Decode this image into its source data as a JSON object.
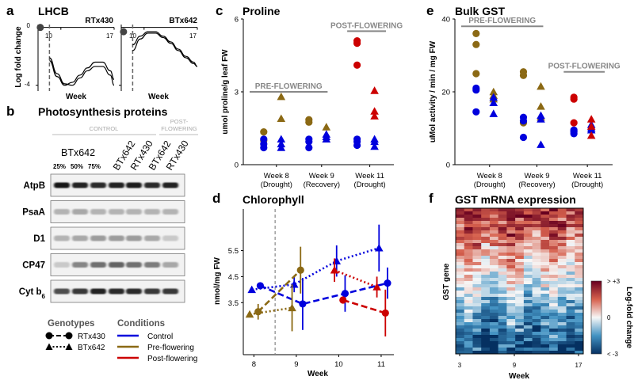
{
  "panels": {
    "a": {
      "letter": "a",
      "title": "LHCB"
    },
    "b": {
      "letter": "b",
      "title": "Photosynthesis proteins"
    },
    "c": {
      "letter": "c",
      "title": "Proline"
    },
    "d": {
      "letter": "d",
      "title": "Chlorophyll"
    },
    "e": {
      "letter": "e",
      "title": "Bulk GST"
    },
    "f": {
      "letter": "f",
      "title": "GST mRNA expression"
    }
  },
  "colors": {
    "control": "#0000dd",
    "pre_flowering": "#8b6914",
    "post_flowering": "#cc0000",
    "annotation": "#888888"
  },
  "chart_data": [
    {
      "id": "a",
      "type": "line",
      "ylabel": "Log fold change",
      "xlabel": "Week",
      "yticks": [
        "0",
        "-4"
      ],
      "xticks": [
        "10",
        "17"
      ],
      "ylim": [
        -4.4,
        0.2
      ],
      "xlim": [
        7,
        17
      ],
      "subpanels": [
        {
          "name": "RTx430",
          "marker_week": 7.3,
          "marker_value": 0,
          "dashed_week": 8.5,
          "series": [
            {
              "values": [
                [
                  8.5,
                  -2.1
                ],
                [
                  9.5,
                  -3.2
                ],
                [
                  10.5,
                  -3.9
                ],
                [
                  11.5,
                  -4.0
                ],
                [
                  12.5,
                  -3.5
                ],
                [
                  13.5,
                  -3.0
                ],
                [
                  14.5,
                  -2.7
                ],
                [
                  15.5,
                  -2.7
                ],
                [
                  16.5,
                  -3.3
                ],
                [
                  17,
                  -4.0
                ]
              ]
            },
            {
              "values": [
                [
                  8.5,
                  -2.3
                ],
                [
                  9.5,
                  -3.4
                ],
                [
                  10.5,
                  -4.0
                ],
                [
                  11.5,
                  -3.8
                ],
                [
                  12.5,
                  -3.3
                ],
                [
                  13.5,
                  -2.8
                ],
                [
                  14.5,
                  -2.4
                ],
                [
                  15.5,
                  -2.4
                ],
                [
                  16.5,
                  -3.0
                ],
                [
                  17,
                  -3.6
                ]
              ]
            }
          ]
        },
        {
          "name": "BTx642",
          "marker_week": 7.3,
          "marker_value": -0.3,
          "dashed_week": 8.5,
          "series": [
            {
              "values": [
                [
                  8.5,
                  -1.2
                ],
                [
                  9.5,
                  -0.6
                ],
                [
                  10.5,
                  -0.3
                ],
                [
                  11.5,
                  -0.3
                ],
                [
                  12.5,
                  -0.6
                ],
                [
                  13.5,
                  -1.0
                ],
                [
                  14.5,
                  -1.5
                ],
                [
                  15.5,
                  -2.0
                ],
                [
                  16.5,
                  -2.4
                ],
                [
                  17,
                  -2.7
                ]
              ]
            },
            {
              "values": [
                [
                  8.5,
                  -1.6
                ],
                [
                  9.5,
                  -0.8
                ],
                [
                  10.5,
                  -0.4
                ],
                [
                  11.5,
                  -0.4
                ],
                [
                  12.5,
                  -0.7
                ],
                [
                  13.5,
                  -1.1
                ],
                [
                  14.5,
                  -1.6
                ],
                [
                  15.5,
                  -2.1
                ],
                [
                  16.5,
                  -2.5
                ],
                [
                  17,
                  -2.7
                ]
              ]
            }
          ]
        }
      ]
    },
    {
      "id": "c",
      "type": "scatter",
      "ylabel": "umol proline/g leaf FW",
      "yticks": [
        "0",
        "3",
        "6"
      ],
      "ylim": [
        0,
        6
      ],
      "categories": [
        "Week 8\n(Drought)",
        "Week 9\n(Recovery)",
        "Week 11\n(Drought)"
      ],
      "annotations": [
        {
          "text": "PRE-FLOWERING",
          "level": 3.0
        },
        {
          "text": "POST-FLOWERING",
          "level": 5.5
        }
      ],
      "series": [
        {
          "genotype": "RTx430",
          "condition": "Pre-flowering",
          "points": [
            [
              0,
              1.0
            ],
            [
              0,
              1.35
            ],
            [
              1,
              1.75
            ],
            [
              1,
              1.85
            ]
          ]
        },
        {
          "genotype": "BTx642",
          "condition": "Pre-flowering",
          "points": [
            [
              0,
              1.9
            ],
            [
              0,
              2.8
            ],
            [
              1,
              1.05
            ],
            [
              1,
              1.55
            ]
          ]
        },
        {
          "genotype": "RTx430",
          "condition": "Control",
          "points": [
            [
              0,
              0.7
            ],
            [
              0,
              0.85
            ],
            [
              0,
              1.05
            ],
            [
              1,
              0.7
            ],
            [
              1,
              0.95
            ],
            [
              1,
              1.05
            ],
            [
              2,
              0.8
            ],
            [
              2,
              0.95
            ],
            [
              2,
              1.05
            ]
          ]
        },
        {
          "genotype": "BTx642",
          "condition": "Control",
          "points": [
            [
              0,
              0.7
            ],
            [
              0,
              0.85
            ],
            [
              0,
              1.05
            ],
            [
              1,
              1.05
            ],
            [
              1,
              1.15
            ],
            [
              1,
              1.25
            ],
            [
              2,
              0.75
            ],
            [
              2,
              0.95
            ],
            [
              2,
              1.05
            ]
          ]
        },
        {
          "genotype": "RTx430",
          "condition": "Post-flowering",
          "points": [
            [
              2,
              4.1
            ],
            [
              2,
              5.0
            ],
            [
              2,
              5.1
            ]
          ]
        },
        {
          "genotype": "BTx642",
          "condition": "Post-flowering",
          "points": [
            [
              2,
              2.0
            ],
            [
              2,
              2.2
            ],
            [
              2,
              3.05
            ]
          ]
        }
      ]
    },
    {
      "id": "d",
      "type": "line",
      "ylabel": "nmol/mg FW",
      "xlabel": "Week",
      "xticks": [
        "8",
        "9",
        "10",
        "11"
      ],
      "yticks": [
        "3.5",
        "4.5",
        "5.5"
      ],
      "xlim": [
        7.75,
        11.3
      ],
      "ylim": [
        1.5,
        7.1
      ],
      "vline": 8.5,
      "series": [
        {
          "genotype": "RTx430",
          "condition": "Control",
          "points": [
            [
              8.15,
              4.15,
              0
            ],
            [
              9.15,
              3.45,
              1.0
            ],
            [
              10.15,
              3.85,
              0.7
            ],
            [
              11.15,
              4.25,
              0.6
            ]
          ]
        },
        {
          "genotype": "BTx642",
          "condition": "Control",
          "points": [
            [
              7.95,
              4.0,
              0
            ],
            [
              8.95,
              4.2,
              0.3
            ],
            [
              9.95,
              5.1,
              0.6
            ],
            [
              10.95,
              5.6,
              0.9
            ]
          ]
        },
        {
          "genotype": "RTx430",
          "condition": "Pre-flowering",
          "points": [
            [
              8.1,
              3.15,
              0.3
            ],
            [
              9.1,
              4.75,
              0.9
            ]
          ]
        },
        {
          "genotype": "BTx642",
          "condition": "Pre-flowering",
          "points": [
            [
              7.9,
              3.05,
              0
            ],
            [
              8.9,
              3.3,
              0.9
            ]
          ]
        },
        {
          "genotype": "RTx430",
          "condition": "Post-flowering",
          "points": [
            [
              10.1,
              3.6,
              0
            ],
            [
              11.1,
              3.1,
              0.9
            ]
          ]
        },
        {
          "genotype": "BTx642",
          "condition": "Post-flowering",
          "points": [
            [
              9.9,
              4.75,
              0.45
            ],
            [
              10.9,
              4.1,
              0.4
            ]
          ]
        }
      ]
    },
    {
      "id": "e",
      "type": "scatter",
      "ylabel": "uMol activity / min / mg FW",
      "yticks": [
        "0",
        "20",
        "40"
      ],
      "ylim": [
        0,
        40
      ],
      "categories": [
        "Week 8\n(Drought)",
        "Week 9\n(Recovery)",
        "Week 11\n(Drought)"
      ],
      "annotations": [
        {
          "text": "PRE-FLOWERING",
          "level": 38
        },
        {
          "text": "POST-FLOWERING",
          "level": 25.5
        }
      ],
      "series": [
        {
          "genotype": "RTx430",
          "condition": "Pre-flowering",
          "points": [
            [
              0,
              25
            ],
            [
              0,
              33
            ],
            [
              0,
              36
            ],
            [
              1,
              11.5
            ],
            [
              1,
              24.5
            ],
            [
              1,
              25.5
            ]
          ]
        },
        {
          "genotype": "BTx642",
          "condition": "Pre-flowering",
          "points": [
            [
              0,
              18
            ],
            [
              0,
              19
            ],
            [
              0,
              20
            ],
            [
              1,
              13
            ],
            [
              1,
              16
            ],
            [
              1,
              21.5
            ]
          ]
        },
        {
          "genotype": "RTx430",
          "condition": "Control",
          "points": [
            [
              0,
              14.5
            ],
            [
              0,
              20.5
            ],
            [
              0,
              21
            ],
            [
              1,
              7.5
            ],
            [
              1,
              12
            ],
            [
              1,
              13
            ],
            [
              2,
              8.5
            ],
            [
              2,
              9
            ],
            [
              2,
              9.5
            ]
          ]
        },
        {
          "genotype": "BTx642",
          "condition": "Control",
          "points": [
            [
              0,
              14
            ],
            [
              0,
              17
            ],
            [
              0,
              18.5
            ],
            [
              1,
              5.5
            ],
            [
              1,
              12.5
            ],
            [
              1,
              13.5
            ],
            [
              2,
              9.5
            ],
            [
              2,
              10
            ],
            [
              2,
              11
            ]
          ]
        },
        {
          "genotype": "RTx430",
          "condition": "Post-flowering",
          "points": [
            [
              2,
              11.5
            ],
            [
              2,
              18
            ],
            [
              2,
              18.5
            ]
          ]
        },
        {
          "genotype": "BTx642",
          "condition": "Post-flowering",
          "points": [
            [
              2,
              8
            ],
            [
              2,
              10.5
            ],
            [
              2,
              12.5
            ]
          ]
        }
      ]
    },
    {
      "id": "f",
      "type": "heatmap",
      "xlabel": "Week",
      "ylabel": "GST gene",
      "xticks": [
        "3",
        "9",
        "17"
      ],
      "colorbar": {
        "label": "Log-fold change",
        "max_label": "> +3",
        "mid_label": "0",
        "min_label": "< -3"
      }
    }
  ],
  "blot": {
    "header_groups": [
      "CONTROL",
      "POST-\nFLOWERING"
    ],
    "genotype_label": "BTx642",
    "percent_labels": [
      "25%",
      "50%",
      "75%"
    ],
    "lane_labels": [
      "BTx642",
      "RTx430",
      "BTx642",
      "RTx430"
    ],
    "rows": [
      {
        "protein": "AtpB",
        "intensities": [
          0.95,
          0.9,
          0.85,
          0.9,
          0.92,
          0.85,
          0.9
        ]
      },
      {
        "protein": "PsaA",
        "intensities": [
          0.25,
          0.3,
          0.25,
          0.25,
          0.25,
          0.25,
          0.25
        ]
      },
      {
        "protein": "D1",
        "intensities": [
          0.25,
          0.3,
          0.35,
          0.35,
          0.35,
          0.3,
          0.15
        ]
      },
      {
        "protein": "CP47",
        "intensities": [
          0.15,
          0.45,
          0.55,
          0.6,
          0.55,
          0.5,
          0.3
        ]
      },
      {
        "protein": "Cyt b",
        "protein_sub": "6",
        "intensities": [
          0.7,
          0.8,
          0.9,
          0.85,
          0.85,
          0.8,
          0.8
        ]
      }
    ]
  },
  "legend": {
    "genotypes_title": "Genotypes",
    "conditions_title": "Conditions",
    "genotypes": [
      "RTx430",
      "BTx642"
    ],
    "conditions": [
      "Control",
      "Pre-flowering",
      "Post-flowering"
    ]
  }
}
